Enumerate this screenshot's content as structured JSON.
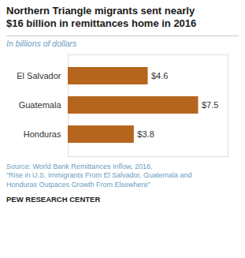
{
  "chart_data": {
    "type": "bar",
    "orientation": "horizontal",
    "title": "Northern Triangle migrants sent nearly\n$16 billion in remittances home in 2016",
    "subtitle": "In billions of dollars",
    "categories": [
      "El Salvador",
      "Guatemala",
      "Honduras"
    ],
    "values": [
      4.6,
      7.5,
      3.8
    ],
    "value_labels": [
      "$4.6",
      "$7.5",
      "$3.8"
    ],
    "data_labels": true,
    "color": "#b5651d",
    "xlim": [
      0,
      9.2
    ],
    "tick_labels": "y",
    "grid": false,
    "annotations": [
      "Source: World Bank Remittances Inflow, 2016.",
      "“Rise in U.S. Immigrants From El Salvador, Guatemala and\nHonduras Outpaces Growth From Elsewhere”",
      "PEW RESEARCH CENTER"
    ]
  }
}
